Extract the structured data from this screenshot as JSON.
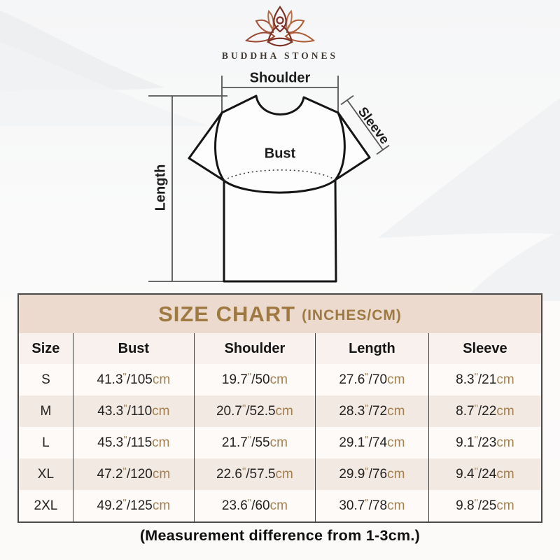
{
  "brand": {
    "name": "BUDDHA STONES",
    "logo_icon": "lotus-meditation-icon"
  },
  "colors": {
    "banner_bg": "#ebdacd",
    "banner_text": "#9e7a42",
    "unit_text": "#a3804f",
    "row_alt_bg": "#f2e9e3",
    "table_border": "#4a4a4a",
    "logo_brown_left": "#9a4a33",
    "logo_brown_right": "#ad5c36",
    "logo_center": "#7c3026"
  },
  "diagram": {
    "shoulder_label": "Shoulder",
    "sleeve_label": "Sleeve",
    "bust_label": "Bust",
    "length_label": "Length"
  },
  "size_chart": {
    "title": "SIZE CHART",
    "subtitle": "(INCHES/CM)",
    "columns": [
      "Size",
      "Bust",
      "Shoulder",
      "Length",
      "Sleeve"
    ],
    "units": {
      "inch": "\"",
      "separator": "/",
      "cm": "cm"
    },
    "rows": [
      {
        "size": "S",
        "bust": [
          "41.3",
          "105"
        ],
        "shoulder": [
          "19.7",
          "50"
        ],
        "length": [
          "27.6",
          "70"
        ],
        "sleeve": [
          "8.3",
          "21"
        ]
      },
      {
        "size": "M",
        "bust": [
          "43.3",
          "110"
        ],
        "shoulder": [
          "20.7",
          "52.5"
        ],
        "length": [
          "28.3",
          "72"
        ],
        "sleeve": [
          "8.7",
          "22"
        ]
      },
      {
        "size": "L",
        "bust": [
          "45.3",
          "115"
        ],
        "shoulder": [
          "21.7",
          "55"
        ],
        "length": [
          "29.1",
          "74"
        ],
        "sleeve": [
          "9.1",
          "23"
        ]
      },
      {
        "size": "XL",
        "bust": [
          "47.2",
          "120"
        ],
        "shoulder": [
          "22.6",
          "57.5"
        ],
        "length": [
          "29.9",
          "76"
        ],
        "sleeve": [
          "9.4",
          "24"
        ]
      },
      {
        "size": "2XL",
        "bust": [
          "49.2",
          "125"
        ],
        "shoulder": [
          "23.6",
          "60"
        ],
        "length": [
          "30.7",
          "78"
        ],
        "sleeve": [
          "9.8",
          "25"
        ]
      }
    ]
  },
  "footer": {
    "note": "(Measurement difference from 1-3cm.)"
  }
}
